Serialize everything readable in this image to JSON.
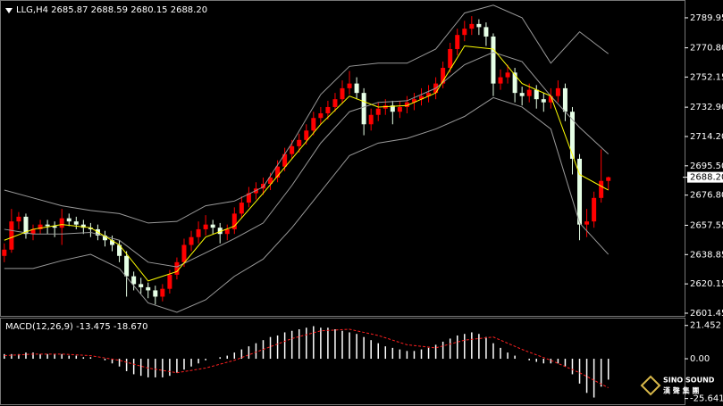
{
  "chart_data": [
    {
      "type": "candlestick",
      "title": "LLG,H4  2685.87 2688.59 2680.15 2688.20",
      "open": [
        2638,
        2642,
        2660,
        2663,
        2652,
        2655,
        2658,
        2657,
        2656,
        2662,
        2660,
        2658,
        2656,
        2655,
        2651,
        2648,
        2645,
        2638,
        2625,
        2620,
        2618,
        2616,
        2612,
        2617,
        2626,
        2634,
        2645,
        2650,
        2655,
        2658,
        2656,
        2652,
        2655,
        2665,
        2672,
        2678,
        2681,
        2684,
        2688,
        2695,
        2703,
        2708,
        2712,
        2718,
        2726,
        2729,
        2733,
        2738,
        2745,
        2748,
        2742,
        2722,
        2728,
        2732,
        2734,
        2730,
        2733,
        2736,
        2738,
        2740,
        2742,
        2748,
        2758,
        2770,
        2779,
        2783,
        2786,
        2784,
        2778,
        2748,
        2752,
        2755,
        2742,
        2740,
        2744,
        2738,
        2736,
        2740,
        2745,
        2730,
        2700,
        2658,
        2660,
        2675,
        2685.87
      ],
      "high": [
        2646,
        2668,
        2666,
        2665,
        2658,
        2661,
        2661,
        2660,
        2668,
        2665,
        2663,
        2661,
        2659,
        2658,
        2654,
        2651,
        2648,
        2641,
        2628,
        2624,
        2621,
        2619,
        2620,
        2629,
        2637,
        2649,
        2654,
        2660,
        2664,
        2661,
        2659,
        2658,
        2669,
        2676,
        2682,
        2685,
        2688,
        2691,
        2699,
        2707,
        2712,
        2716,
        2722,
        2730,
        2733,
        2737,
        2742,
        2750,
        2756,
        2752,
        2745,
        2732,
        2736,
        2738,
        2737,
        2737,
        2740,
        2742,
        2745,
        2747,
        2752,
        2762,
        2774,
        2783,
        2788,
        2791,
        2789,
        2787,
        2780,
        2757,
        2760,
        2758,
        2746,
        2748,
        2747,
        2742,
        2745,
        2750,
        2748,
        2733,
        2703,
        2668,
        2679,
        2706,
        2688.59
      ],
      "low": [
        2634,
        2640,
        2655,
        2649,
        2648,
        2652,
        2652,
        2650,
        2645,
        2657,
        2655,
        2652,
        2650,
        2648,
        2644,
        2641,
        2634,
        2612,
        2616,
        2614,
        2611,
        2607,
        2609,
        2614,
        2623,
        2631,
        2641,
        2646,
        2651,
        2652,
        2646,
        2648,
        2652,
        2662,
        2669,
        2674,
        2677,
        2680,
        2685,
        2692,
        2700,
        2704,
        2709,
        2715,
        2722,
        2725,
        2730,
        2735,
        2741,
        2738,
        2715,
        2718,
        2724,
        2728,
        2722,
        2726,
        2729,
        2731,
        2734,
        2736,
        2738,
        2745,
        2755,
        2766,
        2775,
        2779,
        2779,
        2772,
        2740,
        2744,
        2748,
        2736,
        2734,
        2736,
        2732,
        2730,
        2732,
        2736,
        2724,
        2690,
        2648,
        2650,
        2656,
        2672,
        2680.15
      ],
      "close": [
        2642,
        2660,
        2663,
        2652,
        2655,
        2658,
        2657,
        2656,
        2662,
        2660,
        2658,
        2656,
        2655,
        2651,
        2648,
        2645,
        2638,
        2625,
        2620,
        2618,
        2616,
        2612,
        2617,
        2626,
        2634,
        2645,
        2650,
        2655,
        2658,
        2656,
        2652,
        2655,
        2665,
        2672,
        2678,
        2681,
        2684,
        2688,
        2695,
        2703,
        2708,
        2712,
        2718,
        2726,
        2729,
        2733,
        2738,
        2745,
        2748,
        2742,
        2722,
        2728,
        2732,
        2734,
        2730,
        2733,
        2736,
        2738,
        2740,
        2742,
        2748,
        2758,
        2770,
        2779,
        2783,
        2786,
        2784,
        2778,
        2748,
        2752,
        2755,
        2742,
        2740,
        2744,
        2738,
        2736,
        2740,
        2745,
        2730,
        2700,
        2658,
        2660,
        2675,
        2685.87,
        2688.2
      ],
      "up_color": "#ff0000",
      "down_color": "#e6ffe6",
      "series": [
        {
          "name": "Bollinger Upper",
          "color": "#9a9a9a",
          "x": [
            0,
            4,
            8,
            12,
            16,
            20,
            24,
            28,
            32,
            36,
            40,
            44,
            48,
            52,
            56,
            60,
            64,
            68,
            72,
            76,
            80,
            84
          ],
          "values": [
            2680,
            2675,
            2670,
            2667,
            2665,
            2659,
            2660,
            2670,
            2673,
            2682,
            2710,
            2741,
            2759,
            2761,
            2761,
            2770,
            2793,
            2798,
            2790,
            2761,
            2781,
            2767
          ]
        },
        {
          "name": "Bollinger Middle",
          "color": "#9a9a9a",
          "x": [
            0,
            4,
            8,
            12,
            16,
            20,
            24,
            28,
            32,
            36,
            40,
            44,
            48,
            52,
            56,
            60,
            64,
            68,
            72,
            76,
            80,
            84
          ],
          "values": [
            2655,
            2652,
            2652,
            2653,
            2648,
            2634,
            2631,
            2640,
            2649,
            2659,
            2683,
            2710,
            2730,
            2736,
            2737,
            2745,
            2760,
            2768,
            2762,
            2740,
            2720,
            2703
          ]
        },
        {
          "name": "Bollinger Lower",
          "color": "#9a9a9a",
          "x": [
            0,
            4,
            8,
            12,
            16,
            20,
            24,
            28,
            32,
            36,
            40,
            44,
            48,
            52,
            56,
            60,
            64,
            68,
            72,
            76,
            80,
            84
          ],
          "values": [
            2630,
            2630,
            2635,
            2639,
            2630,
            2608,
            2602,
            2610,
            2625,
            2636,
            2656,
            2679,
            2702,
            2710,
            2713,
            2719,
            2727,
            2739,
            2733,
            2719,
            2659,
            2639
          ]
        },
        {
          "name": "MA",
          "color": "#ffff00",
          "x": [
            0,
            4,
            8,
            12,
            16,
            20,
            24,
            28,
            32,
            36,
            40,
            44,
            48,
            52,
            56,
            60,
            64,
            68,
            72,
            76,
            80,
            84
          ],
          "values": [
            2648,
            2655,
            2658,
            2656,
            2645,
            2622,
            2628,
            2650,
            2657,
            2678,
            2700,
            2722,
            2740,
            2733,
            2734,
            2742,
            2772,
            2770,
            2748,
            2740,
            2690,
            2680
          ]
        }
      ],
      "xlim": [
        -0.6,
        94.6
      ],
      "ylim": [
        2600.3,
        2799.6
      ],
      "yticks": [
        2789.95,
        {
          "value": 2770.8,
          "label": "2770.80"
        },
        2752.15,
        {
          "value": 2732.9,
          "label": "2732.90"
        },
        {
          "value": 2714.2,
          "label": "2714.20"
        },
        {
          "value": 2695.5,
          "label": "2695.50"
        },
        {
          "value": 2676.8,
          "label": "2676.80"
        },
        2657.55,
        2638.85,
        2620.15,
        2601.45
      ],
      "last_price": {
        "value": 2688.2,
        "label": "2688.20"
      }
    },
    {
      "type": "macd",
      "title": "MACD(12,26,9) -13.475 -18.670",
      "values": [
        3,
        3,
        3,
        4,
        4,
        3,
        3,
        3,
        3,
        2,
        2,
        1,
        1,
        0,
        -1,
        -3,
        -5,
        -8,
        -10,
        -11,
        -12,
        -12,
        -12,
        -11,
        -9,
        -7,
        -5,
        -3,
        -1,
        0,
        1,
        2,
        4,
        6,
        8,
        10,
        12,
        14,
        15,
        17,
        18,
        19,
        20,
        21,
        20,
        20,
        19,
        18,
        17,
        16,
        14,
        12,
        10,
        8,
        7,
        6,
        5,
        5,
        6,
        7,
        9,
        11,
        13,
        15,
        16,
        17,
        16,
        14,
        10,
        7,
        4,
        2,
        0,
        -1,
        -2,
        -3,
        -3,
        -3,
        -5,
        -10,
        -16,
        -22,
        -25,
        -18,
        -13.475
      ],
      "color": "#ffffff",
      "series": [
        {
          "name": "Signal",
          "color": "#ff2020",
          "x": [
            0,
            4,
            8,
            12,
            16,
            20,
            24,
            28,
            32,
            36,
            40,
            44,
            48,
            52,
            56,
            60,
            64,
            68,
            72,
            76,
            80,
            84
          ],
          "values": [
            2,
            3,
            3,
            2,
            -1,
            -6,
            -9,
            -6,
            -1,
            6,
            13,
            18,
            19,
            15,
            9,
            7,
            12,
            14,
            6,
            -1,
            -9,
            -18.67
          ]
        }
      ],
      "xlim": [
        -0.6,
        94.6
      ],
      "ylim": [
        -29.3,
        25.9
      ],
      "yticks": [
        21.452,
        {
          "value": 0,
          "label": "0.00"
        },
        -25.641
      ]
    }
  ],
  "logo": {
    "name": "SINO SOUND",
    "subtitle": "漢 聲 集 團"
  }
}
